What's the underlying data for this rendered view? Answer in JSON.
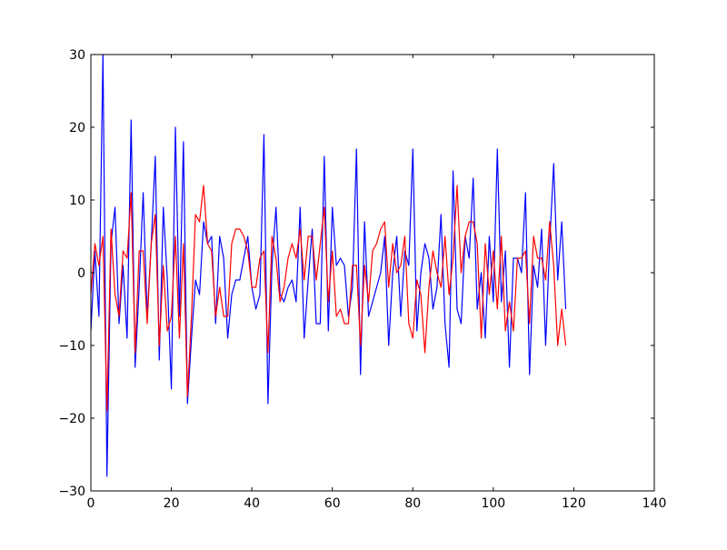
{
  "chart_data": {
    "type": "line",
    "title": "",
    "xlabel": "",
    "ylabel": "",
    "xlim": [
      0,
      140
    ],
    "ylim": [
      -30,
      30
    ],
    "xticks": [
      0,
      20,
      40,
      60,
      80,
      100,
      120,
      140
    ],
    "yticks": [
      -30,
      -20,
      -10,
      0,
      10,
      20,
      30
    ],
    "grid": false,
    "legend": "none",
    "series": [
      {
        "color": "#0000ff",
        "x_start": 0,
        "x_step": 1,
        "values": [
          -8,
          3,
          -6,
          30,
          -28,
          4,
          9,
          -7,
          1,
          -9,
          21,
          -13,
          -2,
          11,
          -6,
          4,
          16,
          -12,
          9,
          -1,
          -16,
          20,
          -6,
          18,
          -18,
          -9,
          -1,
          -3,
          7,
          4,
          5,
          -7,
          5,
          2,
          -9,
          -3,
          -1,
          -1,
          2,
          5,
          -2,
          -5,
          -3,
          19,
          -18,
          1,
          9,
          -3,
          -4,
          -2,
          -1,
          -4,
          9,
          -9,
          -1,
          6,
          -7,
          -7,
          16,
          -8,
          9,
          1,
          2,
          1,
          -6,
          -2,
          17,
          -14,
          7,
          -6,
          -4,
          -2,
          0,
          5,
          -10,
          0,
          5,
          -6,
          3,
          1,
          17,
          -8,
          0,
          4,
          2,
          -5,
          -2,
          8,
          -7,
          -13,
          14,
          -5,
          -7,
          5,
          2,
          13,
          -5,
          0,
          -9,
          5,
          -4,
          17,
          -4,
          3,
          -13,
          2,
          2,
          0,
          11,
          -14,
          1,
          -2,
          6,
          -10,
          4,
          15,
          -1,
          7,
          -5
        ]
      },
      {
        "color": "#ff0000",
        "x_start": 0,
        "x_step": 1,
        "values": [
          -3,
          4,
          1,
          5,
          -19,
          6,
          -3,
          -6,
          3,
          2,
          11,
          -11,
          3,
          3,
          -7,
          4,
          8,
          -10,
          1,
          -8,
          -6,
          5,
          -9,
          4,
          -17,
          -6,
          8,
          7,
          12,
          4,
          3,
          -6,
          -2,
          -6,
          -6,
          4,
          6,
          6,
          5,
          3,
          -2,
          -2,
          2,
          3,
          -11,
          5,
          2,
          -4,
          -2,
          2,
          4,
          2,
          6,
          -1,
          5,
          5,
          -1,
          4,
          9,
          -4,
          3,
          -6,
          -5,
          -7,
          -7,
          1,
          1,
          -10,
          1,
          -4,
          3,
          4,
          6,
          7,
          -2,
          4,
          0,
          1,
          5,
          -7,
          -9,
          -1,
          -3,
          -11,
          -2,
          3,
          0,
          -2,
          5,
          -3,
          2,
          12,
          0,
          5,
          7,
          7,
          4,
          -9,
          4,
          -3,
          3,
          -5,
          5,
          -8,
          -4,
          -8,
          2,
          2,
          3,
          -7,
          5,
          2,
          2,
          -1,
          7,
          1,
          -10,
          -5,
          -10
        ]
      }
    ]
  }
}
